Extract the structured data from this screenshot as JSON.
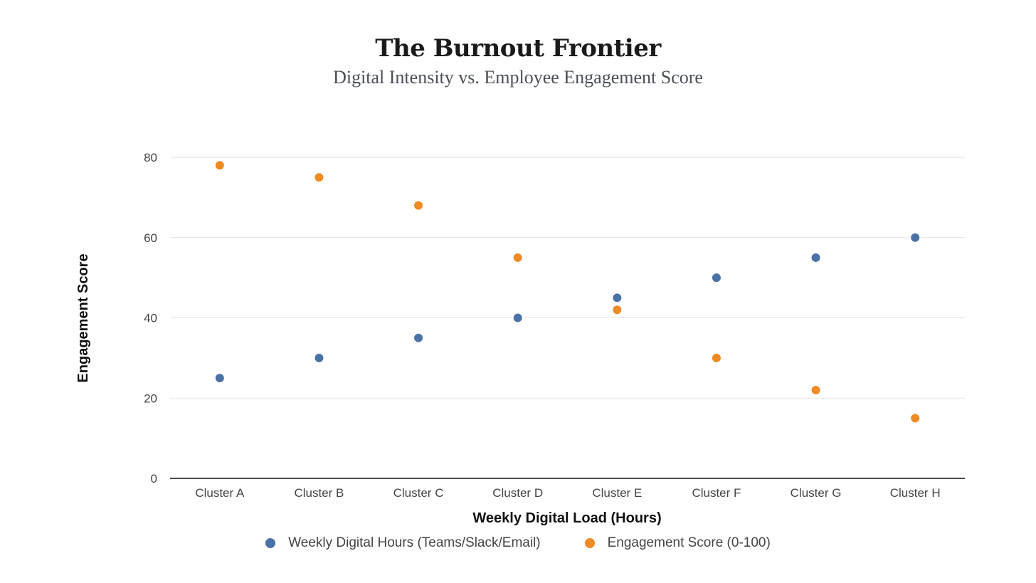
{
  "title": "The Burnout Frontier",
  "subtitle": "Digital Intensity vs. Employee Engagement Score",
  "chart_data": {
    "type": "scatter",
    "title": "The Burnout Frontier",
    "subtitle": "Digital Intensity vs. Employee Engagement Score",
    "xlabel": "Weekly Digital Load (Hours)",
    "ylabel": "Engagement Score",
    "categories": [
      "Cluster A",
      "Cluster B",
      "Cluster C",
      "Cluster D",
      "Cluster E",
      "Cluster F",
      "Cluster G",
      "Cluster H"
    ],
    "series": [
      {
        "name": "Weekly Digital Hours (Teams/Slack/Email)",
        "color": "#4a72a6",
        "values": [
          25,
          30,
          35,
          40,
          45,
          50,
          55,
          60
        ]
      },
      {
        "name": "Engagement Score (0-100)",
        "color": "#f08a24",
        "values": [
          78,
          75,
          68,
          55,
          42,
          30,
          22,
          15
        ]
      }
    ],
    "yticks": [
      0,
      20,
      40,
      60,
      80
    ],
    "ylim": [
      0,
      80
    ],
    "grid": true,
    "legend_position": "bottom"
  },
  "legend": [
    {
      "label": "Weekly Digital Hours (Teams/Slack/Email)",
      "color": "#4a72a6"
    },
    {
      "label": "Engagement Score (0-100)",
      "color": "#f08a24"
    }
  ]
}
